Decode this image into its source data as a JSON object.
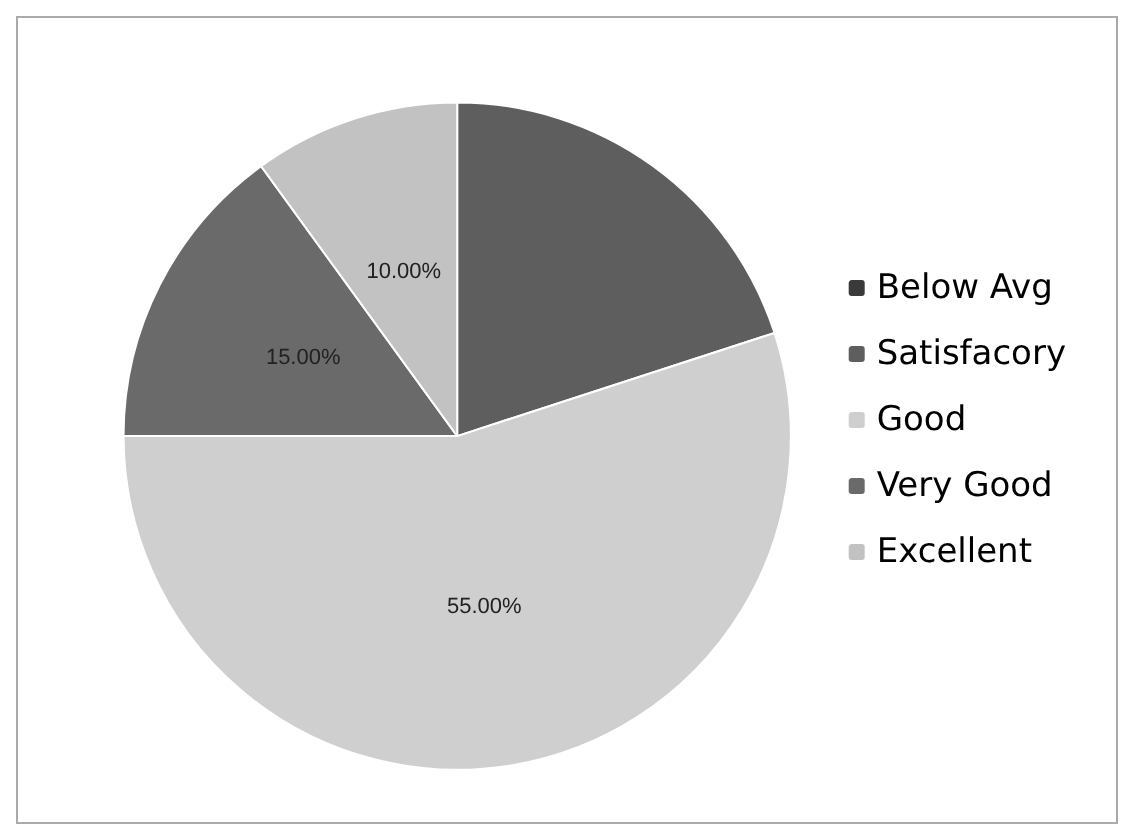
{
  "chart_data": {
    "type": "pie",
    "categories": [
      "Below Avg",
      "Satisfacory",
      "Good",
      "Very Good",
      "Excellent"
    ],
    "values": [
      0,
      20,
      55,
      15,
      10
    ],
    "colors": [
      "#3a3a3a",
      "#5e5e5e",
      "#cfcfcf",
      "#6a6a6a",
      "#c2c2c2"
    ],
    "value_labels": [
      null,
      null,
      "55.00%",
      "15.00%",
      "10.00%"
    ],
    "legend": "right"
  }
}
